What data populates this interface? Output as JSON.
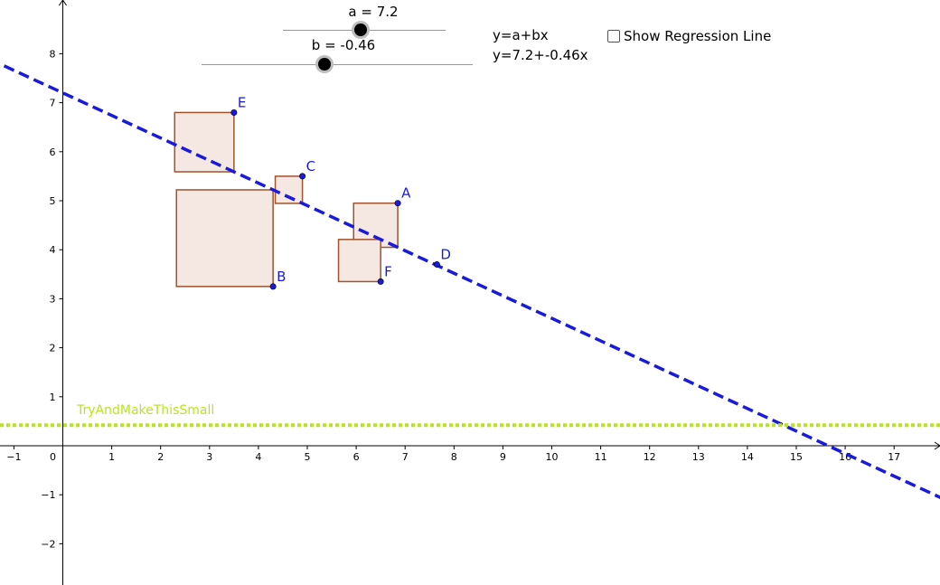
{
  "sliders": [
    {
      "name": "a",
      "label": "a = 7.2",
      "value": 7.2
    },
    {
      "name": "b",
      "label": "b = -0.46",
      "value": -0.46
    }
  ],
  "equations": {
    "general": "y=a+bx",
    "specific": "y=7.2+-0.46x"
  },
  "checkbox": {
    "label": "Show Regression Line",
    "checked": false
  },
  "colors": {
    "line": "#1a1adb",
    "points": "#1a1ad8",
    "square_stroke": "#a0522d",
    "square_fill": "#f5e8e2",
    "sum_line": "#b5e61d",
    "axis": "#000000"
  },
  "chart_data": {
    "type": "scatter",
    "xlim": [
      -1.2,
      18
    ],
    "ylim": [
      -2.8,
      9.3
    ],
    "x_ticks": [
      "-1",
      "0",
      "1",
      "2",
      "3",
      "4",
      "5",
      "6",
      "7",
      "8",
      "9",
      "10",
      "11",
      "12",
      "13",
      "14",
      "15",
      "16",
      "17"
    ],
    "y_ticks": [
      "-2",
      "-1",
      "1",
      "2",
      "3",
      "4",
      "5",
      "6",
      "7",
      "8"
    ],
    "points": [
      {
        "label": "A",
        "x": 6.85,
        "y": 4.95
      },
      {
        "label": "B",
        "x": 4.3,
        "y": 3.25
      },
      {
        "label": "C",
        "x": 4.9,
        "y": 5.5
      },
      {
        "label": "D",
        "x": 7.65,
        "y": 3.7
      },
      {
        "label": "E",
        "x": 3.5,
        "y": 6.8
      },
      {
        "label": "F",
        "x": 6.5,
        "y": 3.35
      }
    ],
    "line": {
      "intercept": 7.2,
      "slope": -0.46
    },
    "sum_line": {
      "y": 0.42,
      "label": "TryAndMakeThisSmall"
    }
  }
}
